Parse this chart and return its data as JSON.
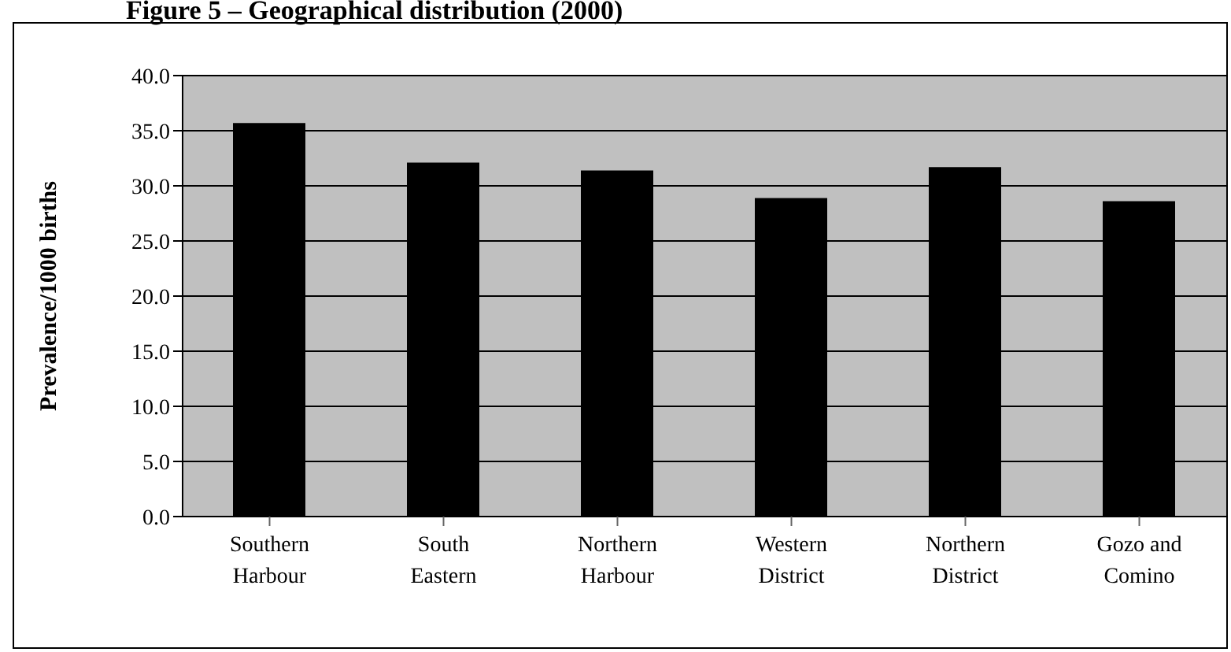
{
  "chart_data": {
    "type": "bar",
    "title": "Figure 5 – Geographical distribution (2000)",
    "ylabel": "Prevalence/1000 births",
    "categories": [
      "Southern Harbour",
      "South Eastern",
      "Northern Harbour",
      "Western District",
      "Northern District",
      "Gozo and Comino"
    ],
    "values": [
      35.7,
      32.1,
      31.4,
      28.9,
      31.7,
      28.6
    ],
    "color": "#000000",
    "ylim": [
      0,
      40
    ],
    "yticks": [
      {
        "value": 0,
        "label": "0.0"
      },
      {
        "value": 5,
        "label": "5.0"
      },
      {
        "value": 10,
        "label": "10.0"
      },
      {
        "value": 15,
        "label": "15.0"
      },
      {
        "value": 20,
        "label": "20.0"
      },
      {
        "value": 25,
        "label": "25.0"
      },
      {
        "value": 30,
        "label": "30.0"
      },
      {
        "value": 35,
        "label": "35.0"
      },
      {
        "value": 40,
        "label": "40.0"
      }
    ],
    "grid": "y",
    "legend": false
  }
}
